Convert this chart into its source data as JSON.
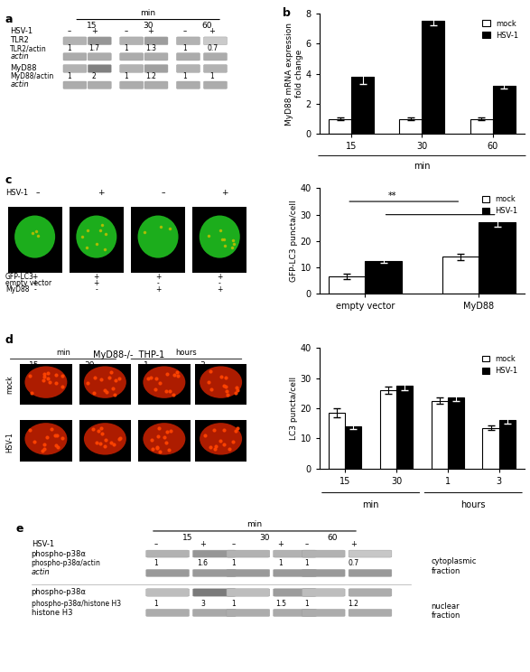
{
  "panel_b": {
    "title": "b",
    "ylabel": "MyD88 mRNA expression\nfold change",
    "xlabel": "min",
    "categories": [
      "15",
      "30",
      "60"
    ],
    "mock_values": [
      1.0,
      1.0,
      1.0
    ],
    "hsv1_values": [
      3.8,
      7.5,
      3.2
    ],
    "mock_errors": [
      0.1,
      0.1,
      0.1
    ],
    "hsv1_errors": [
      0.5,
      0.3,
      0.2
    ],
    "ylim": [
      0,
      8
    ],
    "yticks": [
      0,
      2,
      4,
      6,
      8
    ],
    "legend_mock": "mock",
    "legend_hsv": "HSV-1"
  },
  "panel_c_bar": {
    "ylabel": "GFP-LC3 puncta/cell",
    "categories": [
      "empty vector",
      "MyD88"
    ],
    "mock_values": [
      6.5,
      14.0
    ],
    "hsv1_values": [
      12.5,
      27.0
    ],
    "mock_errors": [
      1.0,
      1.2
    ],
    "hsv1_errors": [
      0.8,
      1.5
    ],
    "ylim": [
      0,
      40
    ],
    "yticks": [
      0,
      10,
      20,
      30,
      40
    ],
    "legend_mock": "mock",
    "legend_hsv": "HSV-1"
  },
  "panel_d_bar": {
    "ylabel": "LC3 puncta/cell",
    "xlabel_min": "min",
    "xlabel_hours": "hours",
    "categories_min": [
      "15",
      "30"
    ],
    "categories_hours": [
      "1",
      "3"
    ],
    "mock_values": [
      18.5,
      26.0,
      22.5,
      13.5
    ],
    "hsv1_values": [
      14.0,
      27.5,
      23.5,
      16.0
    ],
    "mock_errors": [
      1.5,
      1.2,
      1.0,
      0.8
    ],
    "hsv1_errors": [
      1.0,
      1.5,
      1.2,
      1.0
    ],
    "ylim": [
      0,
      40
    ],
    "yticks": [
      0,
      10,
      20,
      30,
      40
    ],
    "legend_mock": "mock",
    "legend_hsv": "HSV-1"
  },
  "colors": {
    "mock_bar": "#ffffff",
    "hsv1_bar": "#000000",
    "bar_edge": "#000000",
    "background": "#ffffff"
  },
  "panel_a": {
    "label": "a",
    "min_labels": [
      "15",
      "30",
      "60"
    ],
    "hsv1_row": [
      "–",
      "+",
      "–",
      "+",
      "–",
      "+"
    ],
    "tlr2_ratios": [
      "1",
      "1.7",
      "1",
      "1.3",
      "1",
      "0.7"
    ],
    "myd88_ratios": [
      "1",
      "2",
      "1",
      "1.2",
      "1",
      "1"
    ]
  },
  "panel_e": {
    "label": "e",
    "min_labels": [
      "15",
      "30",
      "60"
    ],
    "hsv1_row": [
      "–",
      "+",
      "–",
      "+",
      "–",
      "+"
    ],
    "cyto_ratios": [
      "1",
      "1.6",
      "1",
      "1",
      "1",
      "0.7"
    ],
    "nucl_ratios": [
      "1",
      "3",
      "1",
      "1.5",
      "1",
      "1.2"
    ]
  }
}
